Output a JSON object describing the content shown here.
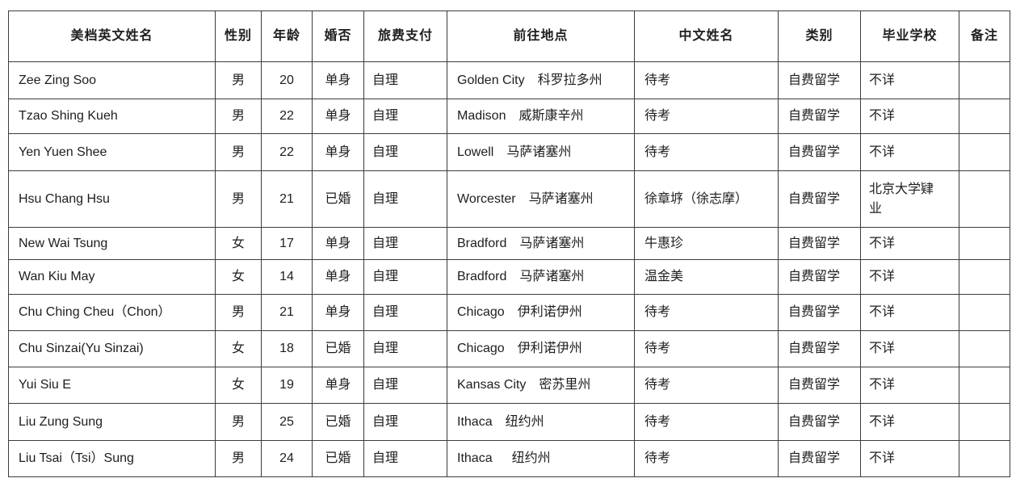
{
  "colors": {
    "background": "#ffffff",
    "border": "#3c3c3c",
    "text": "#1e1e1e"
  },
  "table": {
    "headers": [
      "美档英文姓名",
      "性别",
      "年龄",
      "婚否",
      "旅费支付",
      "前往地点",
      "中文姓名",
      "类别",
      "毕业学校",
      "备注"
    ],
    "rows": [
      [
        "Zee Zing Soo",
        "男",
        "20",
        "单身",
        "自理",
        "Golden City  科罗拉多州",
        "待考",
        "自费留学",
        "不详",
        ""
      ],
      [
        "Tzao Shing Kueh",
        "男",
        "22",
        "单身",
        "自理",
        "Madison  威斯康辛州",
        "待考",
        "自费留学",
        "不详",
        ""
      ],
      [
        "Yen Yuen Shee",
        "男",
        "22",
        "单身",
        "自理",
        "Lowell  马萨诸塞州",
        "待考",
        "自费留学",
        "不详",
        ""
      ],
      [
        "Hsu Chang Hsu",
        "男",
        "21",
        "已婚",
        "自理",
        "Worcester  马萨诸塞州",
        "徐章垿（徐志摩）",
        "自费留学",
        "北京大学肄业",
        ""
      ],
      [
        "New Wai Tsung",
        "女",
        "17",
        "单身",
        "自理",
        "Bradford  马萨诸塞州",
        "牛惠珍",
        "自费留学",
        "不详",
        ""
      ],
      [
        "Wan Kiu May",
        "女",
        "14",
        "单身",
        "自理",
        "Bradford  马萨诸塞州",
        "温金美",
        "自费留学",
        "不详",
        ""
      ],
      [
        "Chu Ching Cheu（Chon）",
        "男",
        "21",
        "单身",
        "自理",
        "Chicago  伊利诺伊州",
        "待考",
        "自费留学",
        "不详",
        ""
      ],
      [
        "Chu Sinzai(Yu Sinzai)",
        "女",
        "18",
        "已婚",
        "自理",
        "Chicago  伊利诺伊州",
        "待考",
        "自费留学",
        "不详",
        ""
      ],
      [
        "Yui Siu E",
        "女",
        "19",
        "单身",
        "自理",
        "Kansas City  密苏里州",
        "待考",
        "自费留学",
        "不详",
        ""
      ],
      [
        "Liu Zung Sung",
        "男",
        "25",
        "已婚",
        "自理",
        "Ithaca  纽约州",
        "待考",
        "自费留学",
        "不详",
        ""
      ],
      [
        "Liu Tsai（Tsi）Sung",
        "男",
        "24",
        "已婚",
        "自理",
        "Ithaca   纽约州",
        "待考",
        "自费留学",
        "不详",
        ""
      ]
    ]
  }
}
